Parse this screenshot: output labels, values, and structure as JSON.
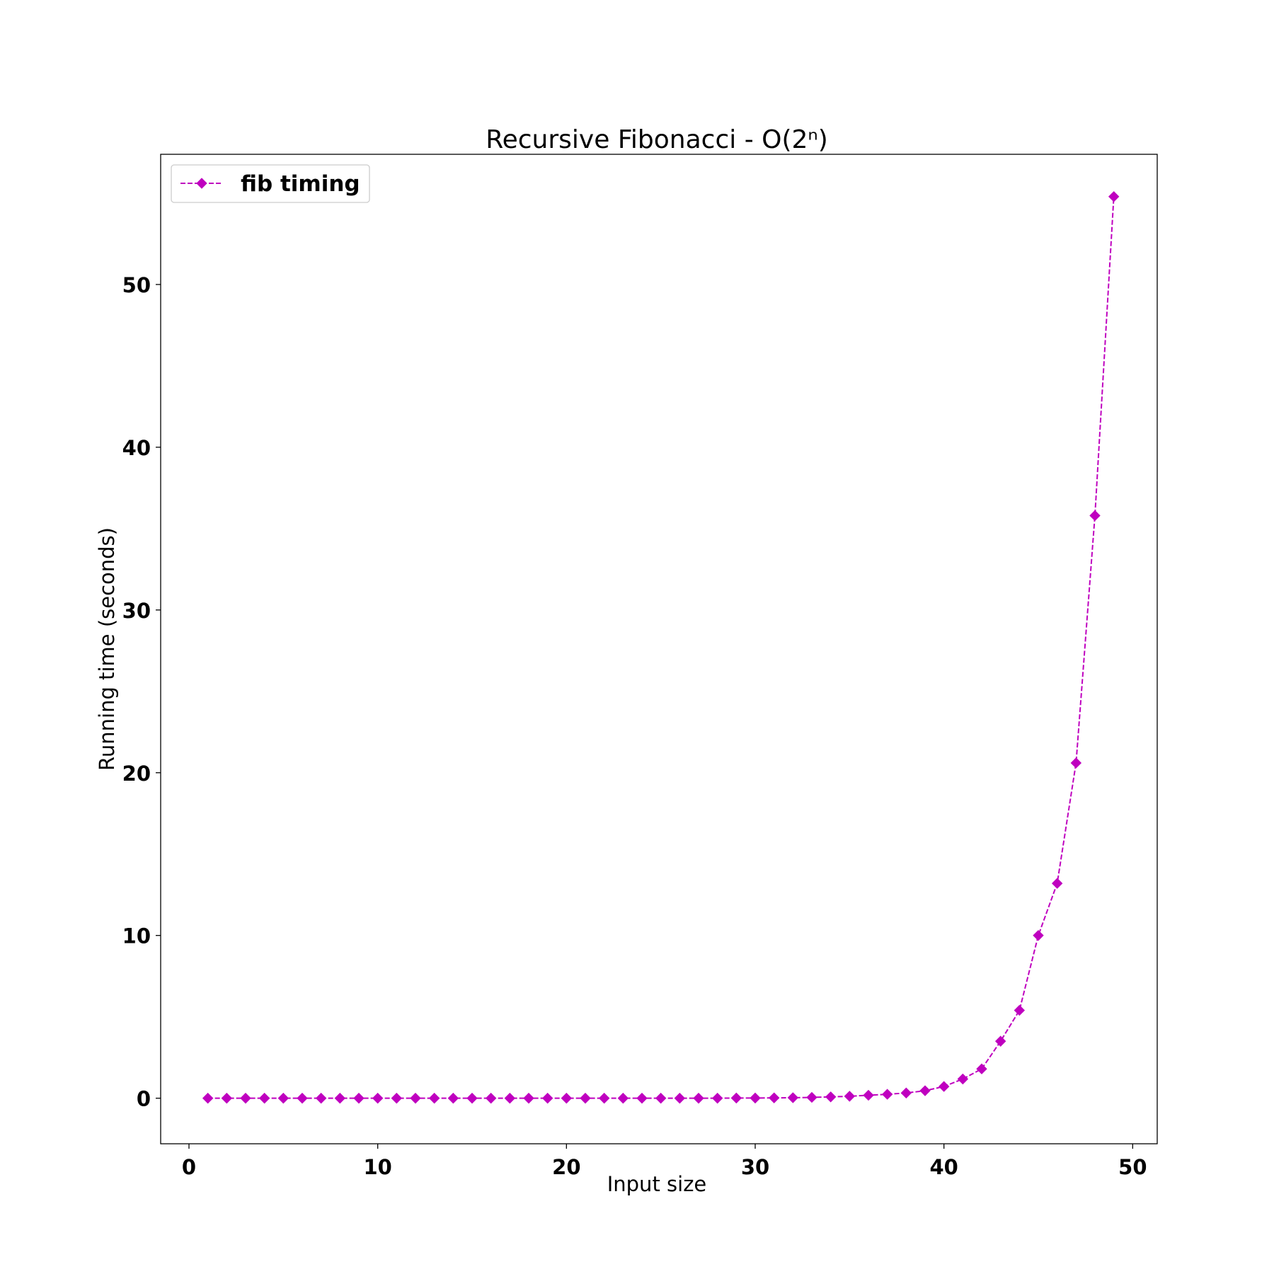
{
  "chart_data": {
    "type": "line",
    "title": "Recursive Fibonacci - O(2ⁿ)",
    "xlabel": "Input size",
    "ylabel": "Running time (seconds)",
    "xlim": [
      -1.5,
      51.3
    ],
    "ylim": [
      -2.8,
      58.0
    ],
    "xticks": [
      0,
      10,
      20,
      30,
      40,
      50
    ],
    "yticks": [
      0,
      10,
      20,
      30,
      40,
      50
    ],
    "grid": false,
    "legend_position": "top-left",
    "series": [
      {
        "name": "fib timing",
        "color": "#bf00bf",
        "line_style": "dashed",
        "marker": "diamond",
        "x": [
          1,
          2,
          3,
          4,
          5,
          6,
          7,
          8,
          9,
          10,
          11,
          12,
          13,
          14,
          15,
          16,
          17,
          18,
          19,
          20,
          21,
          22,
          23,
          24,
          25,
          26,
          27,
          28,
          29,
          30,
          31,
          32,
          33,
          34,
          35,
          36,
          37,
          38,
          39,
          40,
          41,
          42,
          43,
          44,
          45,
          46,
          47,
          48,
          49
        ],
        "y": [
          0,
          0,
          0,
          0,
          0,
          0,
          0,
          0,
          0,
          0,
          0,
          0,
          0,
          0,
          0,
          0,
          0,
          0,
          0,
          0,
          0,
          0,
          0,
          0,
          0,
          0,
          0,
          0,
          0.01,
          0.01,
          0.02,
          0.03,
          0.05,
          0.08,
          0.12,
          0.18,
          0.24,
          0.32,
          0.46,
          0.72,
          1.18,
          1.8,
          3.5,
          5.4,
          10.0,
          13.2,
          20.6,
          35.8,
          55.4
        ]
      }
    ]
  }
}
